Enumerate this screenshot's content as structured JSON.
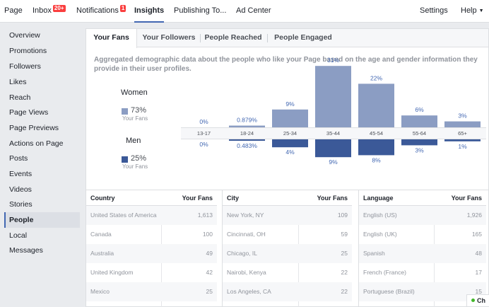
{
  "nav": {
    "page": "Page",
    "inbox": "Inbox",
    "inbox_badge": "20+",
    "notifications": "Notifications",
    "notifications_badge": "1",
    "insights": "Insights",
    "publishing": "Publishing To...",
    "ad_center": "Ad Center",
    "settings": "Settings",
    "help": "Help"
  },
  "sidebar": {
    "items": [
      {
        "label": "Overview"
      },
      {
        "label": "Promotions"
      },
      {
        "label": "Followers"
      },
      {
        "label": "Likes"
      },
      {
        "label": "Reach"
      },
      {
        "label": "Page Views"
      },
      {
        "label": "Page Previews"
      },
      {
        "label": "Actions on Page"
      },
      {
        "label": "Posts"
      },
      {
        "label": "Events"
      },
      {
        "label": "Videos"
      },
      {
        "label": "Stories"
      },
      {
        "label": "People"
      },
      {
        "label": "Local"
      },
      {
        "label": "Messages"
      }
    ],
    "active": "People"
  },
  "subtabs": {
    "your_fans": "Your Fans",
    "your_followers": "Your Followers",
    "people_reached": "People Reached",
    "people_engaged": "People Engaged"
  },
  "description": "Aggregated demographic data about the people who like your Page based on the age and gender information they provide in their user profiles.",
  "legend": {
    "women_title": "Women",
    "women_pct": "73%",
    "women_label": "Your Fans",
    "men_title": "Men",
    "men_pct": "25%",
    "men_label": "Your Fans"
  },
  "colors": {
    "women": "#8b9dc3",
    "men": "#3b5998",
    "accent": "#4267b2"
  },
  "chart_data": {
    "type": "bar",
    "categories": [
      "13-17",
      "18-24",
      "25-34",
      "35-44",
      "45-54",
      "55-64",
      "65+"
    ],
    "series": [
      {
        "name": "Women",
        "values": [
          0,
          0.879,
          9,
          31,
          22,
          6,
          3
        ],
        "labels": [
          "0%",
          "0.879%",
          "9%",
          "31%",
          "22%",
          "6%",
          "3%"
        ]
      },
      {
        "name": "Men",
        "values": [
          0,
          0.483,
          4,
          9,
          8,
          3,
          1
        ],
        "labels": [
          "0%",
          "0.483%",
          "4%",
          "9%",
          "8%",
          "3%",
          "1%"
        ]
      }
    ]
  },
  "tables": {
    "country": {
      "header": "Country",
      "value_header": "Your Fans",
      "rows": [
        {
          "name": "United States of America",
          "value": "1,613"
        },
        {
          "name": "Canada",
          "value": "100"
        },
        {
          "name": "Australia",
          "value": "49"
        },
        {
          "name": "United Kingdom",
          "value": "42"
        },
        {
          "name": "Mexico",
          "value": "25"
        }
      ]
    },
    "city": {
      "header": "City",
      "value_header": "Your Fans",
      "rows": [
        {
          "name": "New York, NY",
          "value": "109"
        },
        {
          "name": "Cincinnati, OH",
          "value": "59"
        },
        {
          "name": "Chicago, IL",
          "value": "25"
        },
        {
          "name": "Nairobi, Kenya",
          "value": "22"
        },
        {
          "name": "Los Angeles, CA",
          "value": "22"
        }
      ]
    },
    "language": {
      "header": "Language",
      "value_header": "Your Fans",
      "rows": [
        {
          "name": "English (US)",
          "value": "1,926"
        },
        {
          "name": "English (UK)",
          "value": "165"
        },
        {
          "name": "Spanish",
          "value": "48"
        },
        {
          "name": "French (France)",
          "value": "17"
        },
        {
          "name": "Portuguese (Brazil)",
          "value": "15"
        }
      ]
    }
  },
  "chat": {
    "label": "Ch"
  }
}
